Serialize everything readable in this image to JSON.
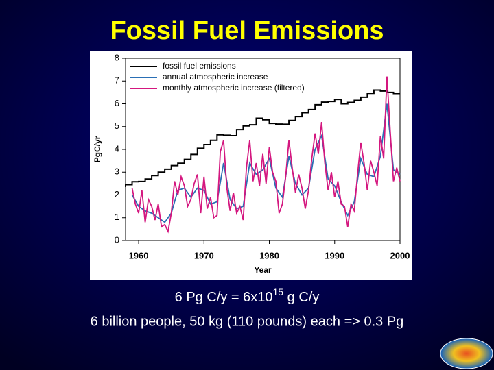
{
  "slide": {
    "title": "Fossil Fuel Emissions",
    "caption_line1": [
      "6 Pg C/y = 6x10",
      "15",
      " g C/y"
    ],
    "caption_line2": "6 billion people, 50 kg (110 pounds) each => 0.3 Pg"
  },
  "chart_data": {
    "type": "line",
    "xlabel": "Year",
    "ylabel": "PgC/yr",
    "xlim": [
      1958,
      2000
    ],
    "xticks": [
      1960,
      1970,
      1980,
      1990,
      2000
    ],
    "ylim": [
      0,
      8
    ],
    "yticks": [
      0,
      1,
      2,
      3,
      4,
      5,
      6,
      7,
      8
    ],
    "legend": "upper left",
    "series": [
      {
        "name": "fossil fuel emissions",
        "color": "#000000",
        "step": true,
        "x": [
          1958,
          1959,
          1960,
          1961,
          1962,
          1963,
          1964,
          1965,
          1966,
          1967,
          1968,
          1969,
          1970,
          1971,
          1972,
          1973,
          1974,
          1975,
          1976,
          1977,
          1978,
          1979,
          1980,
          1981,
          1982,
          1983,
          1984,
          1985,
          1986,
          1987,
          1988,
          1989,
          1990,
          1991,
          1992,
          1993,
          1994,
          1995,
          1996,
          1997,
          1998,
          1999,
          2000
        ],
        "values": [
          2.35,
          2.45,
          2.58,
          2.59,
          2.7,
          2.85,
          3.0,
          3.13,
          3.29,
          3.39,
          3.56,
          3.78,
          4.05,
          4.21,
          4.4,
          4.64,
          4.62,
          4.6,
          4.87,
          5.03,
          5.08,
          5.37,
          5.3,
          5.14,
          5.11,
          5.1,
          5.27,
          5.44,
          5.61,
          5.75,
          5.96,
          6.07,
          6.1,
          6.19,
          6.0,
          6.06,
          6.15,
          6.29,
          6.46,
          6.6,
          6.56,
          6.5,
          6.45
        ]
      },
      {
        "name": "annual atmospheric increase",
        "color": "#2a6fb5",
        "step": false,
        "x": [
          1959,
          1960,
          1961,
          1962,
          1963,
          1964,
          1965,
          1966,
          1967,
          1968,
          1969,
          1970,
          1971,
          1972,
          1973,
          1974,
          1975,
          1976,
          1977,
          1978,
          1979,
          1980,
          1981,
          1982,
          1983,
          1984,
          1985,
          1986,
          1987,
          1988,
          1989,
          1990,
          1991,
          1992,
          1993,
          1994,
          1995,
          1996,
          1997,
          1998,
          1999,
          2000
        ],
        "values": [
          2.0,
          1.5,
          1.3,
          1.2,
          1.0,
          0.8,
          1.2,
          2.2,
          2.3,
          1.9,
          2.3,
          2.2,
          1.6,
          1.7,
          3.4,
          1.8,
          1.4,
          1.5,
          3.4,
          2.9,
          3.1,
          3.6,
          2.3,
          1.9,
          3.7,
          2.5,
          2.0,
          2.3,
          4.0,
          4.6,
          2.7,
          2.4,
          1.7,
          1.1,
          1.7,
          3.6,
          2.9,
          2.8,
          3.7,
          6.0,
          3.1,
          2.9
        ]
      },
      {
        "name": "monthly atmospheric increase (filtered)",
        "color": "#d4177f",
        "step": false,
        "x": [
          1959,
          1959.5,
          1960,
          1960.5,
          1961,
          1961.5,
          1962,
          1962.5,
          1963,
          1963.5,
          1964,
          1964.5,
          1965,
          1965.5,
          1966,
          1966.5,
          1967,
          1967.5,
          1968,
          1968.5,
          1969,
          1969.5,
          1970,
          1970.5,
          1971,
          1971.5,
          1972,
          1972.5,
          1973,
          1973.5,
          1974,
          1974.5,
          1975,
          1975.5,
          1976,
          1976.5,
          1977,
          1977.5,
          1978,
          1978.5,
          1979,
          1979.5,
          1980,
          1980.5,
          1981,
          1981.5,
          1982,
          1982.5,
          1983,
          1983.5,
          1984,
          1984.5,
          1985,
          1985.5,
          1986,
          1986.5,
          1987,
          1987.5,
          1988,
          1988.5,
          1989,
          1989.5,
          1990,
          1990.5,
          1991,
          1991.5,
          1992,
          1992.5,
          1993,
          1993.5,
          1994,
          1994.5,
          1995,
          1995.5,
          1996,
          1996.5,
          1997,
          1997.5,
          1998,
          1998.5,
          1999,
          1999.5,
          2000
        ],
        "values": [
          2.3,
          1.6,
          1.2,
          2.2,
          0.8,
          1.8,
          1.5,
          0.9,
          1.6,
          0.6,
          0.7,
          0.4,
          1.2,
          2.6,
          2.0,
          2.8,
          2.4,
          1.5,
          1.8,
          2.5,
          2.9,
          1.2,
          2.8,
          1.4,
          1.9,
          1.0,
          1.1,
          3.9,
          4.4,
          2.3,
          1.3,
          2.1,
          1.2,
          1.5,
          0.9,
          3.2,
          4.4,
          2.6,
          3.4,
          2.4,
          3.8,
          2.5,
          4.1,
          3.0,
          2.6,
          1.2,
          1.6,
          2.8,
          4.4,
          3.2,
          2.1,
          2.9,
          2.3,
          1.4,
          2.2,
          3.6,
          4.7,
          3.8,
          5.2,
          3.4,
          2.2,
          3.0,
          1.9,
          2.6,
          1.6,
          1.5,
          0.6,
          1.6,
          1.3,
          2.9,
          4.3,
          3.4,
          2.2,
          3.5,
          3.0,
          2.4,
          4.6,
          3.6,
          7.2,
          4.8,
          2.6,
          3.2,
          2.6
        ]
      }
    ]
  }
}
